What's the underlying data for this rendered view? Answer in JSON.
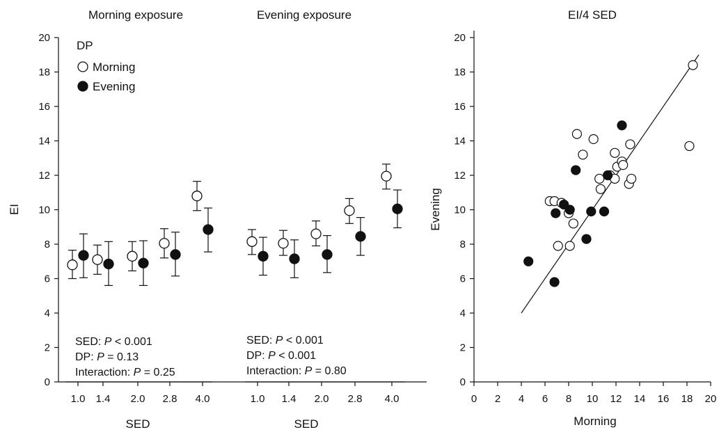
{
  "chart_data": [
    {
      "type": "scatter",
      "title": "Morning exposure",
      "xlabel": "SED",
      "ylabel": "EI",
      "categories": [
        "1.0",
        "1.4",
        "2.0",
        "2.8",
        "4.0"
      ],
      "ylim": [
        0,
        20
      ],
      "yticks": [
        "0",
        "2",
        "4",
        "6",
        "8",
        "10",
        "12",
        "14",
        "16",
        "18",
        "20"
      ],
      "legend": {
        "title": "DP",
        "placement": "top-left",
        "entries": [
          "Morning",
          "Evening"
        ]
      },
      "series": [
        {
          "name": "Morning",
          "marker": "open-circle",
          "values": [
            6.8,
            7.1,
            7.3,
            8.05,
            10.8
          ],
          "lower": [
            6.0,
            6.25,
            6.45,
            7.2,
            9.95
          ],
          "upper": [
            7.65,
            7.95,
            8.15,
            8.9,
            11.65
          ]
        },
        {
          "name": "Evening",
          "marker": "filled-circle",
          "values": [
            7.35,
            6.85,
            6.9,
            7.4,
            8.85
          ],
          "lower": [
            6.05,
            5.6,
            5.6,
            6.15,
            7.55
          ],
          "upper": [
            8.6,
            8.15,
            8.2,
            8.7,
            10.1
          ]
        }
      ],
      "annotations": [
        {
          "label": "SED:",
          "p": "P",
          "rel": "< 0.001"
        },
        {
          "label": "DP:",
          "p": "P",
          "rel": "= 0.13"
        },
        {
          "label": "Interaction:",
          "p": "P",
          "rel": "= 0.25"
        }
      ]
    },
    {
      "type": "scatter",
      "title": "Evening exposure",
      "xlabel": "SED",
      "ylabel": "",
      "categories": [
        "1.0",
        "1.4",
        "2.0",
        "2.8",
        "4.0"
      ],
      "ylim": [
        0,
        20
      ],
      "series": [
        {
          "name": "Morning",
          "marker": "open-circle",
          "values": [
            8.15,
            8.05,
            8.6,
            9.95,
            11.95
          ],
          "lower": [
            7.4,
            7.35,
            7.9,
            9.2,
            11.2
          ],
          "upper": [
            8.85,
            8.8,
            9.35,
            10.65,
            12.65
          ]
        },
        {
          "name": "Evening",
          "marker": "filled-circle",
          "values": [
            7.3,
            7.15,
            7.4,
            8.45,
            10.05
          ],
          "lower": [
            6.2,
            6.05,
            6.35,
            7.35,
            8.95
          ],
          "upper": [
            8.4,
            8.25,
            8.5,
            9.55,
            11.15
          ]
        }
      ],
      "annotations": [
        {
          "label": "SED:",
          "p": "P",
          "rel": "< 0.001"
        },
        {
          "label": "DP:",
          "p": "P",
          "rel": "< 0.001"
        },
        {
          "label": "Interaction:",
          "p": "P",
          "rel": "= 0.80"
        }
      ]
    },
    {
      "type": "scatter",
      "title": "EI/4 SED",
      "xlabel": "Morning",
      "ylabel": "Evening",
      "xlim": [
        0,
        20
      ],
      "ylim": [
        0,
        20
      ],
      "xticks": [
        "0",
        "2",
        "4",
        "6",
        "8",
        "10",
        "12",
        "14",
        "16",
        "18",
        "20"
      ],
      "yticks": [
        "0",
        "2",
        "4",
        "6",
        "8",
        "10",
        "12",
        "14",
        "16",
        "18",
        "20"
      ],
      "regression_line": {
        "x": [
          4.0,
          19.0
        ],
        "y": [
          4.0,
          19.0
        ]
      },
      "series": [
        {
          "name": "Morning",
          "marker": "open-circle",
          "points": [
            [
              6.4,
              10.5
            ],
            [
              6.8,
              10.5
            ],
            [
              7.4,
              10.4
            ],
            [
              7.1,
              7.9
            ],
            [
              8.1,
              7.9
            ],
            [
              8.0,
              9.8
            ],
            [
              8.4,
              9.2
            ],
            [
              8.7,
              14.4
            ],
            [
              9.2,
              13.2
            ],
            [
              10.1,
              14.1
            ],
            [
              10.6,
              11.8
            ],
            [
              10.7,
              11.2
            ],
            [
              11.5,
              12.0
            ],
            [
              11.9,
              13.3
            ],
            [
              11.9,
              11.8
            ],
            [
              12.1,
              12.5
            ],
            [
              12.5,
              12.8
            ],
            [
              12.6,
              12.6
            ],
            [
              13.1,
              11.5
            ],
            [
              13.2,
              13.8
            ],
            [
              13.3,
              11.8
            ],
            [
              18.2,
              13.7
            ],
            [
              18.5,
              18.4
            ]
          ]
        },
        {
          "name": "Evening",
          "marker": "filled-circle",
          "points": [
            [
              4.6,
              7.0
            ],
            [
              6.8,
              5.8
            ],
            [
              6.9,
              9.8
            ],
            [
              7.6,
              10.3
            ],
            [
              8.1,
              10.0
            ],
            [
              8.6,
              12.3
            ],
            [
              9.5,
              8.3
            ],
            [
              9.9,
              9.9
            ],
            [
              11.0,
              9.9
            ],
            [
              11.3,
              12.0
            ],
            [
              12.5,
              14.9
            ]
          ]
        }
      ]
    }
  ]
}
